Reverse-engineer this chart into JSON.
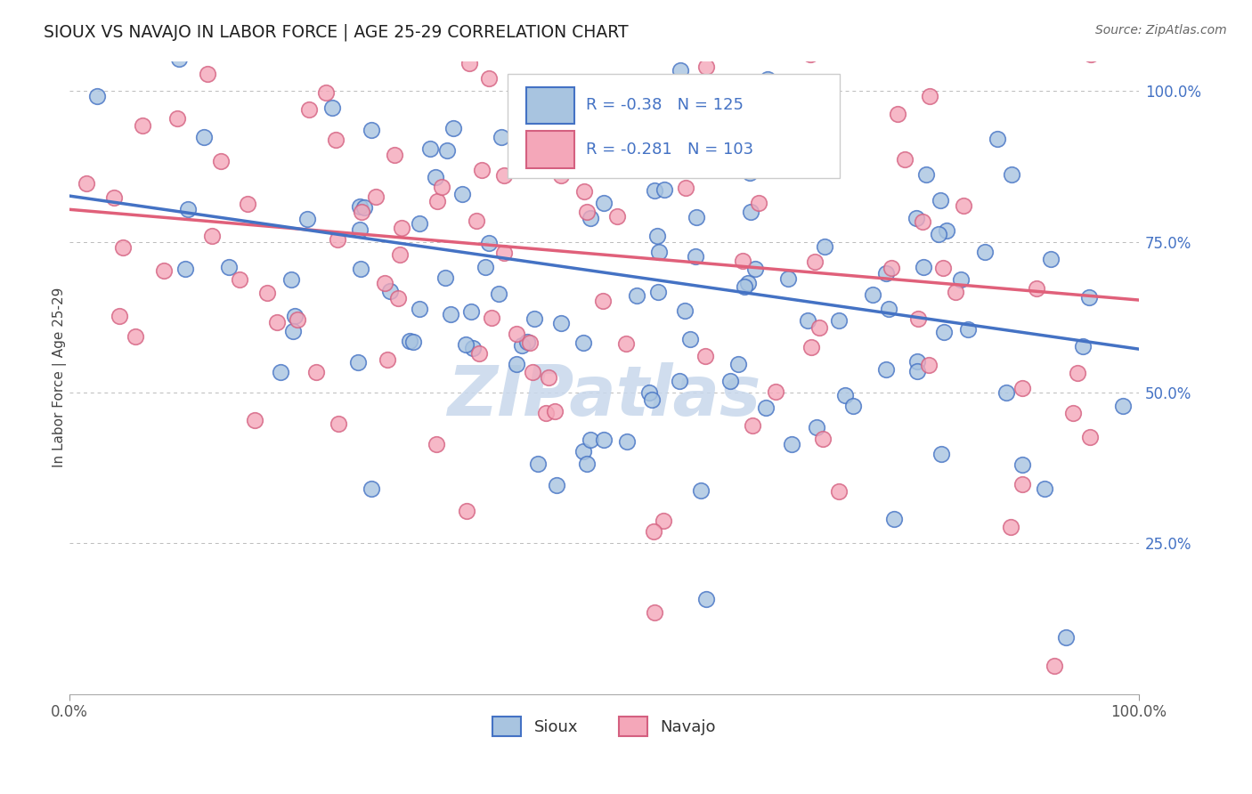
{
  "title": "SIOUX VS NAVAJO IN LABOR FORCE | AGE 25-29 CORRELATION CHART",
  "source_text": "Source: ZipAtlas.com",
  "ylabel": "In Labor Force | Age 25-29",
  "xlim": [
    0.0,
    1.0
  ],
  "ylim": [
    0.0,
    1.05
  ],
  "sioux_color": "#a8c4e0",
  "navajo_color": "#f4a7b9",
  "sioux_line_color": "#4472c4",
  "navajo_line_color": "#e0607a",
  "navajo_edge_color": "#d46080",
  "R_sioux": -0.38,
  "N_sioux": 125,
  "R_navajo": -0.281,
  "N_navajo": 103,
  "sioux_intercept": 0.88,
  "sioux_slope": -0.3,
  "navajo_intercept": 0.8,
  "navajo_slope": -0.18,
  "watermark_text": "ZIPatlas",
  "watermark_color": "#c8d8ec",
  "background_color": "#ffffff",
  "grid_color": "#bbbbbb",
  "title_color": "#222222",
  "source_color": "#666666",
  "tick_label_color": "#555555"
}
